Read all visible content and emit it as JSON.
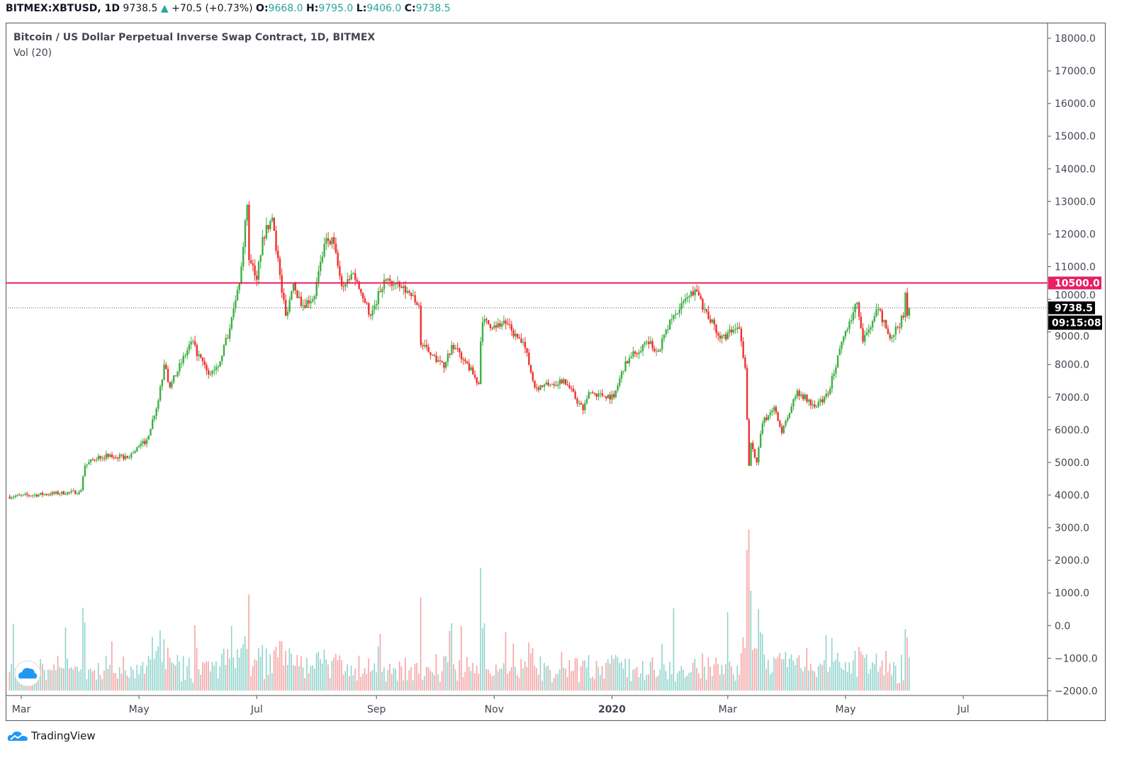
{
  "header": {
    "symbol": "BITMEX:XBTUSD, 1D",
    "last": "9738.5",
    "change": "+70.5 (+0.73%)",
    "o_label": "O:",
    "o": "9668.0",
    "h_label": "H:",
    "h": "9795.0",
    "l_label": "L:",
    "l": "9406.0",
    "c_label": "C:",
    "c": "9738.5"
  },
  "legend": {
    "title": "Bitcoin / US Dollar Perpetual Inverse Swap Contract, 1D, BITMEX",
    "indicator": "Vol (20)"
  },
  "branding": "TradingView",
  "colors": {
    "up": "#3cb043",
    "down": "#f0302c",
    "vol_up": "#8fd3cc",
    "vol_down": "#f5a3a3",
    "hline": "#e91e63",
    "price_label": "#000000"
  },
  "chart_data": {
    "type": "candlestick",
    "yaxis": {
      "ticks": [
        18000,
        17000,
        16000,
        15000,
        14000,
        13000,
        12000,
        11000,
        10000,
        9000,
        8000,
        7000,
        6000,
        5000,
        4000,
        3000,
        2000,
        1000,
        0,
        -1000,
        -2000
      ],
      "tick_labels": [
        "18000.0",
        "17000.0",
        "16000.0",
        "15000.0",
        "14000.0",
        "13000.0",
        "12000.0",
        "11000.0",
        "10000.0",
        "9000.0",
        "8000.0",
        "7000.0",
        "6000.0",
        "5000.0",
        "4000.0",
        "3000.0",
        "2000.0",
        "1000.0",
        "0.0",
        "−1000.0",
        "−2000.0"
      ],
      "range": [
        -2000,
        18500
      ],
      "position": "right"
    },
    "xaxis": {
      "tick_labels": [
        "Mar",
        "May",
        "Jul",
        "Sep",
        "Nov",
        "2020",
        "Mar",
        "May",
        "Jul"
      ],
      "tick_dates": [
        "2019-03-01",
        "2019-05-01",
        "2019-07-01",
        "2019-09-01",
        "2019-11-01",
        "2020-01-01",
        "2020-03-01",
        "2020-05-01",
        "2020-07-01"
      ]
    },
    "horizontal_line": {
      "value": 10500,
      "label": "10500.0"
    },
    "last_price": {
      "value": 9738.5,
      "label": "9738.5",
      "countdown": "09:15:08"
    },
    "approx_closes": [
      [
        "2019-02-22",
        3950
      ],
      [
        "2019-03-31",
        4100
      ],
      [
        "2019-04-01",
        4150
      ],
      [
        "2019-04-03",
        4900
      ],
      [
        "2019-04-10",
        5200
      ],
      [
        "2019-04-25",
        5150
      ],
      [
        "2019-05-05",
        5700
      ],
      [
        "2019-05-11",
        6900
      ],
      [
        "2019-05-14",
        8000
      ],
      [
        "2019-05-17",
        7300
      ],
      [
        "2019-05-28",
        8700
      ],
      [
        "2019-06-06",
        7700
      ],
      [
        "2019-06-12",
        8100
      ],
      [
        "2019-06-17",
        9100
      ],
      [
        "2019-06-22",
        10500
      ],
      [
        "2019-06-26",
        12900
      ],
      [
        "2019-06-27",
        11200
      ],
      [
        "2019-07-01",
        10600
      ],
      [
        "2019-07-04",
        11900
      ],
      [
        "2019-07-09",
        12500
      ],
      [
        "2019-07-10",
        12100
      ],
      [
        "2019-07-14",
        10200
      ],
      [
        "2019-07-16",
        9500
      ],
      [
        "2019-07-20",
        10500
      ],
      [
        "2019-07-24",
        9800
      ],
      [
        "2019-07-31",
        10100
      ],
      [
        "2019-08-05",
        11700
      ],
      [
        "2019-08-09",
        11900
      ],
      [
        "2019-08-14",
        10400
      ],
      [
        "2019-08-20",
        10800
      ],
      [
        "2019-08-24",
        10200
      ],
      [
        "2019-08-29",
        9500
      ],
      [
        "2019-09-05",
        10600
      ],
      [
        "2019-09-18",
        10200
      ],
      [
        "2019-09-23",
        9800
      ],
      [
        "2019-09-24",
        8600
      ],
      [
        "2019-09-30",
        8300
      ],
      [
        "2019-10-06",
        7900
      ],
      [
        "2019-10-10",
        8600
      ],
      [
        "2019-10-17",
        8100
      ],
      [
        "2019-10-24",
        7400
      ],
      [
        "2019-10-25",
        8700
      ],
      [
        "2019-10-26",
        9300
      ],
      [
        "2019-11-01",
        9200
      ],
      [
        "2019-11-07",
        9250
      ],
      [
        "2019-11-17",
        8500
      ],
      [
        "2019-11-22",
        7300
      ],
      [
        "2019-12-01",
        7400
      ],
      [
        "2019-12-07",
        7550
      ],
      [
        "2019-12-17",
        6600
      ],
      [
        "2019-12-20",
        7150
      ],
      [
        "2020-01-02",
        7000
      ],
      [
        "2020-01-08",
        8100
      ],
      [
        "2020-01-19",
        8700
      ],
      [
        "2020-01-25",
        8400
      ],
      [
        "2020-02-01",
        9400
      ],
      [
        "2020-02-10",
        10100
      ],
      [
        "2020-02-13",
        10300
      ],
      [
        "2020-02-18",
        9700
      ],
      [
        "2020-02-26",
        8800
      ],
      [
        "2020-03-07",
        9100
      ],
      [
        "2020-03-10",
        7900
      ],
      [
        "2020-03-12",
        4900
      ],
      [
        "2020-03-13",
        5600
      ],
      [
        "2020-03-16",
        5000
      ],
      [
        "2020-03-19",
        6200
      ],
      [
        "2020-03-25",
        6700
      ],
      [
        "2020-03-29",
        5900
      ],
      [
        "2020-04-06",
        7200
      ],
      [
        "2020-04-15",
        6700
      ],
      [
        "2020-04-22",
        7100
      ],
      [
        "2020-04-29",
        8700
      ],
      [
        "2020-05-07",
        9900
      ],
      [
        "2020-05-10",
        8700
      ],
      [
        "2020-05-18",
        9700
      ],
      [
        "2020-05-24",
        8800
      ],
      [
        "2020-05-31",
        9450
      ],
      [
        "2020-06-01",
        10200
      ],
      [
        "2020-06-02",
        9500
      ],
      [
        "2020-06-03",
        9738.5
      ]
    ]
  }
}
